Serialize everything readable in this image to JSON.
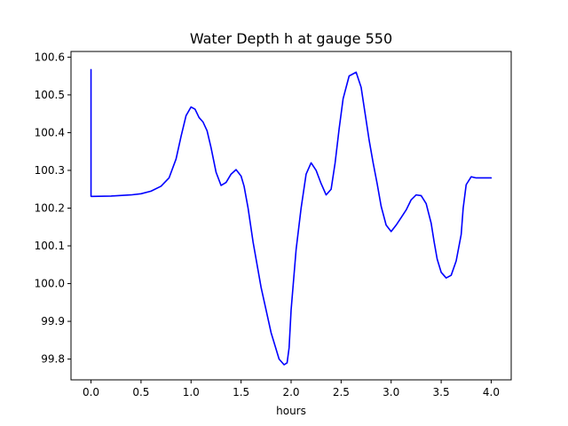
{
  "chart_data": {
    "type": "line",
    "title": "Water Depth h at gauge 550",
    "xlabel": "hours",
    "ylabel": "",
    "xlim": [
      -0.2,
      4.2
    ],
    "ylim": [
      99.745,
      100.615
    ],
    "grid": false,
    "xticks": [
      0.0,
      0.5,
      1.0,
      1.5,
      2.0,
      2.5,
      3.0,
      3.5,
      4.0
    ],
    "xtick_labels": [
      "0.0",
      "0.5",
      "1.0",
      "1.5",
      "2.0",
      "2.5",
      "3.0",
      "3.5",
      "4.0"
    ],
    "yticks": [
      99.8,
      99.9,
      100.0,
      100.1,
      100.2,
      100.3,
      100.4,
      100.5,
      100.6
    ],
    "ytick_labels": [
      "99.8",
      "99.9",
      "100.0",
      "100.1",
      "100.2",
      "100.3",
      "100.4",
      "100.5",
      "100.6"
    ],
    "series": [
      {
        "color": "#0000ff",
        "x": [
          0.0,
          0.0,
          0.002,
          0.01,
          0.2,
          0.4,
          0.5,
          0.6,
          0.7,
          0.78,
          0.85,
          0.9,
          0.95,
          1.0,
          1.04,
          1.08,
          1.12,
          1.16,
          1.2,
          1.25,
          1.3,
          1.35,
          1.4,
          1.45,
          1.5,
          1.53,
          1.57,
          1.62,
          1.7,
          1.8,
          1.88,
          1.93,
          1.96,
          1.98,
          2.0,
          2.05,
          2.1,
          2.15,
          2.2,
          2.25,
          2.3,
          2.35,
          2.4,
          2.44,
          2.48,
          2.52,
          2.58,
          2.65,
          2.7,
          2.74,
          2.78,
          2.82,
          2.86,
          2.9,
          2.95,
          3.0,
          3.05,
          3.1,
          3.15,
          3.2,
          3.25,
          3.3,
          3.35,
          3.4,
          3.43,
          3.46,
          3.5,
          3.55,
          3.6,
          3.65,
          3.7,
          3.72,
          3.75,
          3.8,
          3.85,
          3.9,
          3.95,
          3.98,
          4.0
        ],
        "y": [
          100.567,
          100.232,
          100.231,
          100.231,
          100.232,
          100.235,
          100.238,
          100.245,
          100.258,
          100.28,
          100.33,
          100.39,
          100.445,
          100.468,
          100.462,
          100.44,
          100.428,
          100.405,
          100.36,
          100.295,
          100.26,
          100.268,
          100.29,
          100.302,
          100.285,
          100.258,
          100.2,
          100.11,
          99.99,
          99.87,
          99.8,
          99.785,
          99.79,
          99.83,
          99.93,
          100.09,
          100.2,
          100.29,
          100.32,
          100.3,
          100.265,
          100.235,
          100.25,
          100.32,
          100.41,
          100.49,
          100.55,
          100.56,
          100.52,
          100.45,
          100.38,
          100.32,
          100.265,
          100.205,
          100.155,
          100.138,
          100.155,
          100.175,
          100.195,
          100.222,
          100.235,
          100.233,
          100.212,
          100.16,
          100.11,
          100.065,
          100.03,
          100.015,
          100.022,
          100.06,
          100.13,
          100.2,
          100.262,
          100.283,
          100.28,
          100.28,
          100.28,
          100.28,
          100.28
        ]
      }
    ]
  }
}
